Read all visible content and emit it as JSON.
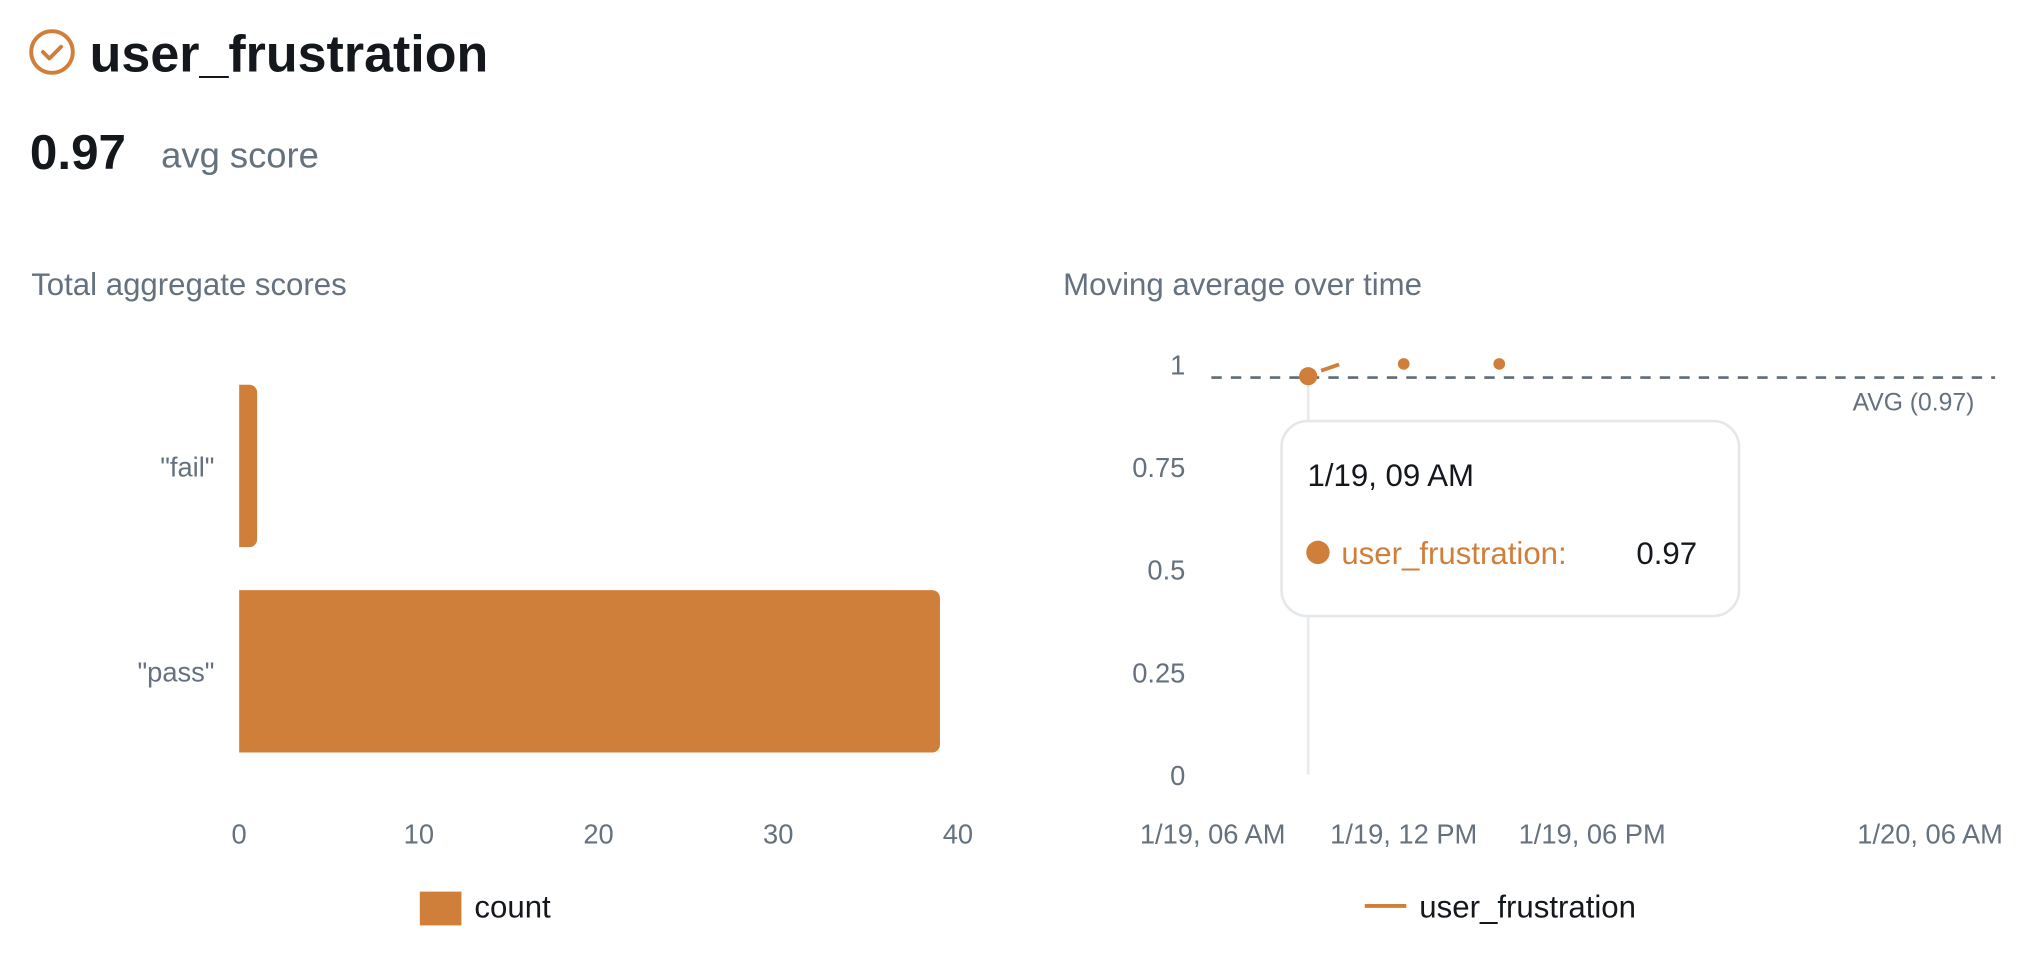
{
  "header": {
    "title": "user_frustration",
    "status_icon": "check-circle-icon",
    "avg_value": "0.97",
    "avg_label": "avg score"
  },
  "colors": {
    "accent": "#D07F3A",
    "text": "#14181D",
    "muted": "#65717F",
    "avg_line": "#5F6B78"
  },
  "chart_data": [
    {
      "type": "bar",
      "orientation": "horizontal",
      "title": "Total aggregate scores",
      "categories": [
        "\"fail\"",
        "\"pass\""
      ],
      "series": [
        {
          "name": "count",
          "values": [
            1,
            39
          ]
        }
      ],
      "xlim": [
        0,
        40
      ],
      "xticks": [
        "0",
        "10",
        "20",
        "30",
        "40"
      ],
      "grid": false,
      "legend": "bottom"
    },
    {
      "type": "line",
      "title": "Moving average over time",
      "x": [
        "1/19, 09 AM",
        "1/19, 12 PM",
        "1/19, 03 PM"
      ],
      "x_hours_from_first_tick": [
        3,
        6,
        9
      ],
      "series": [
        {
          "name": "user_frustration",
          "values": [
            0.97,
            1,
            1
          ]
        }
      ],
      "ylim": [
        0,
        1
      ],
      "yticks": [
        "0",
        "0.25",
        "0.5",
        "0.75",
        "1"
      ],
      "xticks": [
        "1/19, 06 AM",
        "1/19, 12 PM",
        "1/19, 06 PM",
        "1/20, 06 AM"
      ],
      "avg_line": {
        "value": 0.97,
        "label": "AVG (0.97)"
      },
      "legend": "bottom",
      "tooltip": {
        "title": "1/19, 09 AM",
        "series": "user_frustration:",
        "value": "0.97"
      }
    }
  ]
}
